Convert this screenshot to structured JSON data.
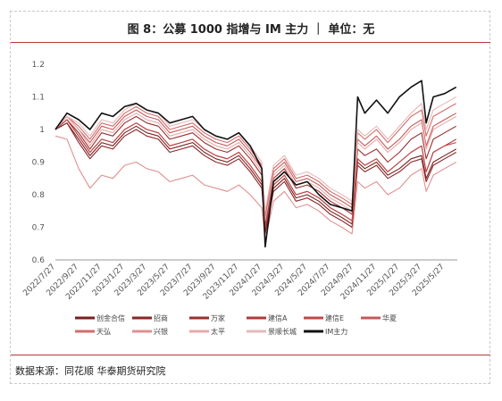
{
  "title": "图 8：公募 1000 指增与 IM 主力 ｜ 单位：无",
  "source": "数据来源：同花顺 华泰期货研究院",
  "chart_data": {
    "type": "line",
    "title": "图 8：公募 1000 指增与 IM 主力 ｜ 单位：无",
    "xlabel": "",
    "ylabel": "",
    "ylim": [
      0.6,
      1.2
    ],
    "yticks": [
      "0.6",
      "0.7",
      "0.8",
      "0.9",
      "1",
      "1.1",
      "1.2"
    ],
    "x_tick_labels": [
      "2022/7/27",
      "2022/9/27",
      "2022/11/27",
      "2023/1/27",
      "2023/3/27",
      "2023/5/27",
      "2023/7/27",
      "2023/9/27",
      "2023/11/27",
      "2024/1/27",
      "2024/3/27",
      "2024/5/27",
      "2024/7/27",
      "2024/9/27",
      "2024/11/27",
      "2025/1/27",
      "2025/3/27",
      "2025/5/27"
    ],
    "x": [
      "2022/7/27",
      "2022/8/27",
      "2022/9/27",
      "2022/10/27",
      "2022/11/27",
      "2022/12/27",
      "2023/1/27",
      "2023/2/27",
      "2023/3/27",
      "2023/4/27",
      "2023/5/27",
      "2023/6/27",
      "2023/7/27",
      "2023/8/27",
      "2023/9/27",
      "2023/10/27",
      "2023/11/27",
      "2023/12/27",
      "2024/1/27",
      "2024/2/5",
      "2024/2/27",
      "2024/3/27",
      "2024/4/27",
      "2024/5/27",
      "2024/6/27",
      "2024/7/27",
      "2024/8/27",
      "2024/9/23",
      "2024/10/8",
      "2024/10/27",
      "2024/11/27",
      "2024/12/27",
      "2025/1/27",
      "2025/2/27",
      "2025/3/27",
      "2025/4/8",
      "2025/4/27",
      "2025/5/27",
      "2025/6/27"
    ],
    "series": [
      {
        "name": "创金合信",
        "color": "#7a1f1f",
        "values": [
          1.0,
          1.02,
          0.97,
          0.92,
          0.96,
          0.95,
          0.99,
          1.01,
          0.99,
          0.98,
          0.94,
          0.95,
          0.96,
          0.93,
          0.91,
          0.9,
          0.92,
          0.88,
          0.83,
          0.69,
          0.82,
          0.85,
          0.79,
          0.8,
          0.78,
          0.75,
          0.73,
          0.71,
          0.9,
          0.88,
          0.9,
          0.86,
          0.88,
          0.91,
          0.92,
          0.85,
          0.9,
          0.92,
          0.94
        ]
      },
      {
        "name": "招商",
        "color": "#8b2525",
        "values": [
          1.0,
          1.02,
          0.96,
          0.91,
          0.95,
          0.94,
          0.98,
          1.0,
          0.98,
          0.97,
          0.93,
          0.94,
          0.95,
          0.92,
          0.9,
          0.89,
          0.91,
          0.87,
          0.82,
          0.68,
          0.81,
          0.84,
          0.78,
          0.79,
          0.77,
          0.74,
          0.72,
          0.7,
          0.89,
          0.87,
          0.89,
          0.85,
          0.87,
          0.9,
          0.91,
          0.84,
          0.89,
          0.91,
          0.93
        ]
      },
      {
        "name": "万家",
        "color": "#9b2f2f",
        "values": [
          1.0,
          1.03,
          0.99,
          0.94,
          0.99,
          0.98,
          1.02,
          1.04,
          1.02,
          1.01,
          0.97,
          0.98,
          0.99,
          0.96,
          0.94,
          0.93,
          0.95,
          0.91,
          0.86,
          0.71,
          0.85,
          0.88,
          0.82,
          0.83,
          0.81,
          0.78,
          0.76,
          0.74,
          0.94,
          0.92,
          0.94,
          0.9,
          0.93,
          0.97,
          0.99,
          0.91,
          0.97,
          0.99,
          1.01
        ]
      },
      {
        "name": "建信A",
        "color": "#b03a3a",
        "values": [
          1.0,
          1.03,
          0.98,
          0.93,
          0.97,
          0.96,
          1.0,
          1.02,
          1.0,
          0.99,
          0.95,
          0.96,
          0.97,
          0.94,
          0.92,
          0.91,
          0.93,
          0.89,
          0.84,
          0.7,
          0.83,
          0.86,
          0.8,
          0.81,
          0.79,
          0.76,
          0.74,
          0.72,
          0.91,
          0.89,
          0.91,
          0.87,
          0.9,
          0.93,
          0.95,
          0.87,
          0.93,
          0.95,
          0.97
        ]
      },
      {
        "name": "建信E",
        "color": "#c04848",
        "values": [
          1.0,
          1.03,
          0.98,
          0.93,
          0.97,
          0.96,
          1.0,
          1.02,
          1.0,
          0.99,
          0.95,
          0.96,
          0.97,
          0.94,
          0.92,
          0.91,
          0.93,
          0.89,
          0.84,
          0.7,
          0.83,
          0.86,
          0.8,
          0.81,
          0.79,
          0.76,
          0.74,
          0.72,
          0.91,
          0.89,
          0.91,
          0.87,
          0.9,
          0.93,
          0.95,
          0.87,
          0.93,
          0.95,
          0.96
        ]
      },
      {
        "name": "华夏",
        "color": "#c45a5a",
        "values": [
          1.0,
          1.04,
          1.0,
          0.96,
          1.01,
          1.0,
          1.04,
          1.06,
          1.04,
          1.03,
          0.99,
          1.0,
          1.01,
          0.98,
          0.96,
          0.95,
          0.97,
          0.93,
          0.88,
          0.73,
          0.87,
          0.9,
          0.84,
          0.85,
          0.83,
          0.8,
          0.78,
          0.76,
          0.97,
          0.95,
          0.98,
          0.94,
          0.97,
          1.01,
          1.03,
          0.95,
          1.01,
          1.03,
          1.05
        ]
      },
      {
        "name": "天弘",
        "color": "#d46c6c",
        "values": [
          1.0,
          1.04,
          1.01,
          0.97,
          1.02,
          1.01,
          1.05,
          1.07,
          1.05,
          1.04,
          1.0,
          1.01,
          1.02,
          0.99,
          0.97,
          0.96,
          0.98,
          0.94,
          0.89,
          0.74,
          0.88,
          0.91,
          0.85,
          0.86,
          0.84,
          0.81,
          0.79,
          0.77,
          0.99,
          0.97,
          1.0,
          0.96,
          1.0,
          1.04,
          1.06,
          0.98,
          1.04,
          1.06,
          1.08
        ]
      },
      {
        "name": "兴银",
        "color": "#e09090",
        "values": [
          0.98,
          0.97,
          0.88,
          0.82,
          0.86,
          0.85,
          0.89,
          0.9,
          0.88,
          0.87,
          0.84,
          0.85,
          0.86,
          0.83,
          0.82,
          0.81,
          0.83,
          0.8,
          0.76,
          0.66,
          0.78,
          0.81,
          0.76,
          0.77,
          0.75,
          0.72,
          0.7,
          0.68,
          0.84,
          0.82,
          0.84,
          0.8,
          0.82,
          0.86,
          0.88,
          0.81,
          0.86,
          0.88,
          0.9
        ]
      },
      {
        "name": "太平",
        "color": "#e8a8a8",
        "values": [
          1.0,
          1.04,
          1.0,
          0.95,
          1.0,
          0.99,
          1.03,
          1.05,
          1.03,
          1.02,
          0.98,
          0.99,
          1.0,
          0.97,
          0.95,
          0.94,
          0.96,
          0.92,
          0.87,
          0.72,
          0.86,
          0.89,
          0.83,
          0.84,
          0.82,
          0.79,
          0.77,
          0.75,
          0.96,
          0.94,
          0.97,
          0.93,
          0.96,
          1.0,
          1.02,
          0.94,
          1.0,
          1.02,
          1.04
        ]
      },
      {
        "name": "景顺长城",
        "color": "#e6b8b8",
        "values": [
          1.0,
          1.04,
          1.02,
          0.98,
          1.03,
          1.02,
          1.06,
          1.08,
          1.06,
          1.05,
          1.01,
          1.02,
          1.03,
          1.0,
          0.98,
          0.97,
          0.99,
          0.95,
          0.9,
          0.75,
          0.89,
          0.92,
          0.86,
          0.87,
          0.85,
          0.82,
          0.8,
          0.78,
          1.0,
          0.98,
          1.01,
          0.97,
          1.01,
          1.05,
          1.08,
          1.0,
          1.06,
          1.08,
          1.1
        ]
      },
      {
        "name": "IM主力",
        "color": "#111111",
        "values": [
          1.0,
          1.05,
          1.03,
          1.0,
          1.05,
          1.04,
          1.07,
          1.08,
          1.06,
          1.05,
          1.02,
          1.03,
          1.04,
          1.0,
          0.98,
          0.97,
          0.99,
          0.95,
          0.88,
          0.64,
          0.84,
          0.87,
          0.83,
          0.84,
          0.8,
          0.77,
          0.76,
          0.75,
          1.1,
          1.05,
          1.09,
          1.05,
          1.1,
          1.13,
          1.15,
          1.02,
          1.1,
          1.11,
          1.13
        ]
      }
    ],
    "grid": false,
    "legend": "bottom"
  }
}
